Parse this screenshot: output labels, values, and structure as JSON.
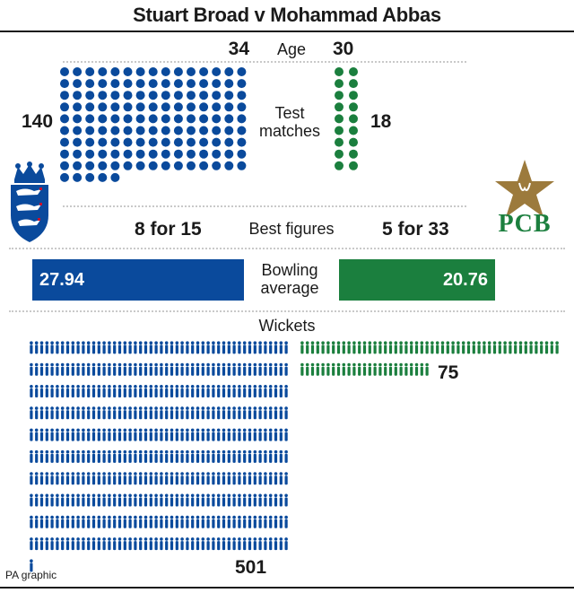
{
  "title": "Stuart Broad v Mohammad Abbas",
  "colors": {
    "england": "#0a4a9c",
    "pakistan": "#1b7f3e",
    "england_logo_red": "#c8102e",
    "pcb_gold": "#9c7a3c"
  },
  "logos": {
    "england": "England cricket crest (three lions and crown)",
    "pakistan": "PCB"
  },
  "chart_data": {
    "type": "table",
    "players": [
      "Stuart Broad",
      "Mohammad Abbas"
    ],
    "metrics": [
      {
        "name": "Age",
        "left": 34,
        "right": 30,
        "left_text": "34",
        "right_text": "30"
      },
      {
        "name": "Test matches",
        "left": 140,
        "right": 18,
        "left_text": "140",
        "right_text": "18",
        "display": "dots"
      },
      {
        "name": "Best figures",
        "left_text": "8 for 15",
        "right_text": "5 for 33"
      },
      {
        "name": "Bowling average",
        "left": 27.94,
        "right": 20.76,
        "left_text": "27.94",
        "right_text": "20.76",
        "display": "bars"
      },
      {
        "name": "Wickets",
        "left": 501,
        "right": 75,
        "left_text": "501",
        "right_text": "75",
        "display": "figures"
      }
    ]
  },
  "labels": {
    "age": "Age",
    "tests_line1": "Test",
    "tests_line2": "matches",
    "best": "Best figures",
    "avg_line1": "Bowling",
    "avg_line2": "average",
    "wickets": "Wickets"
  },
  "footer": "PA graphic"
}
